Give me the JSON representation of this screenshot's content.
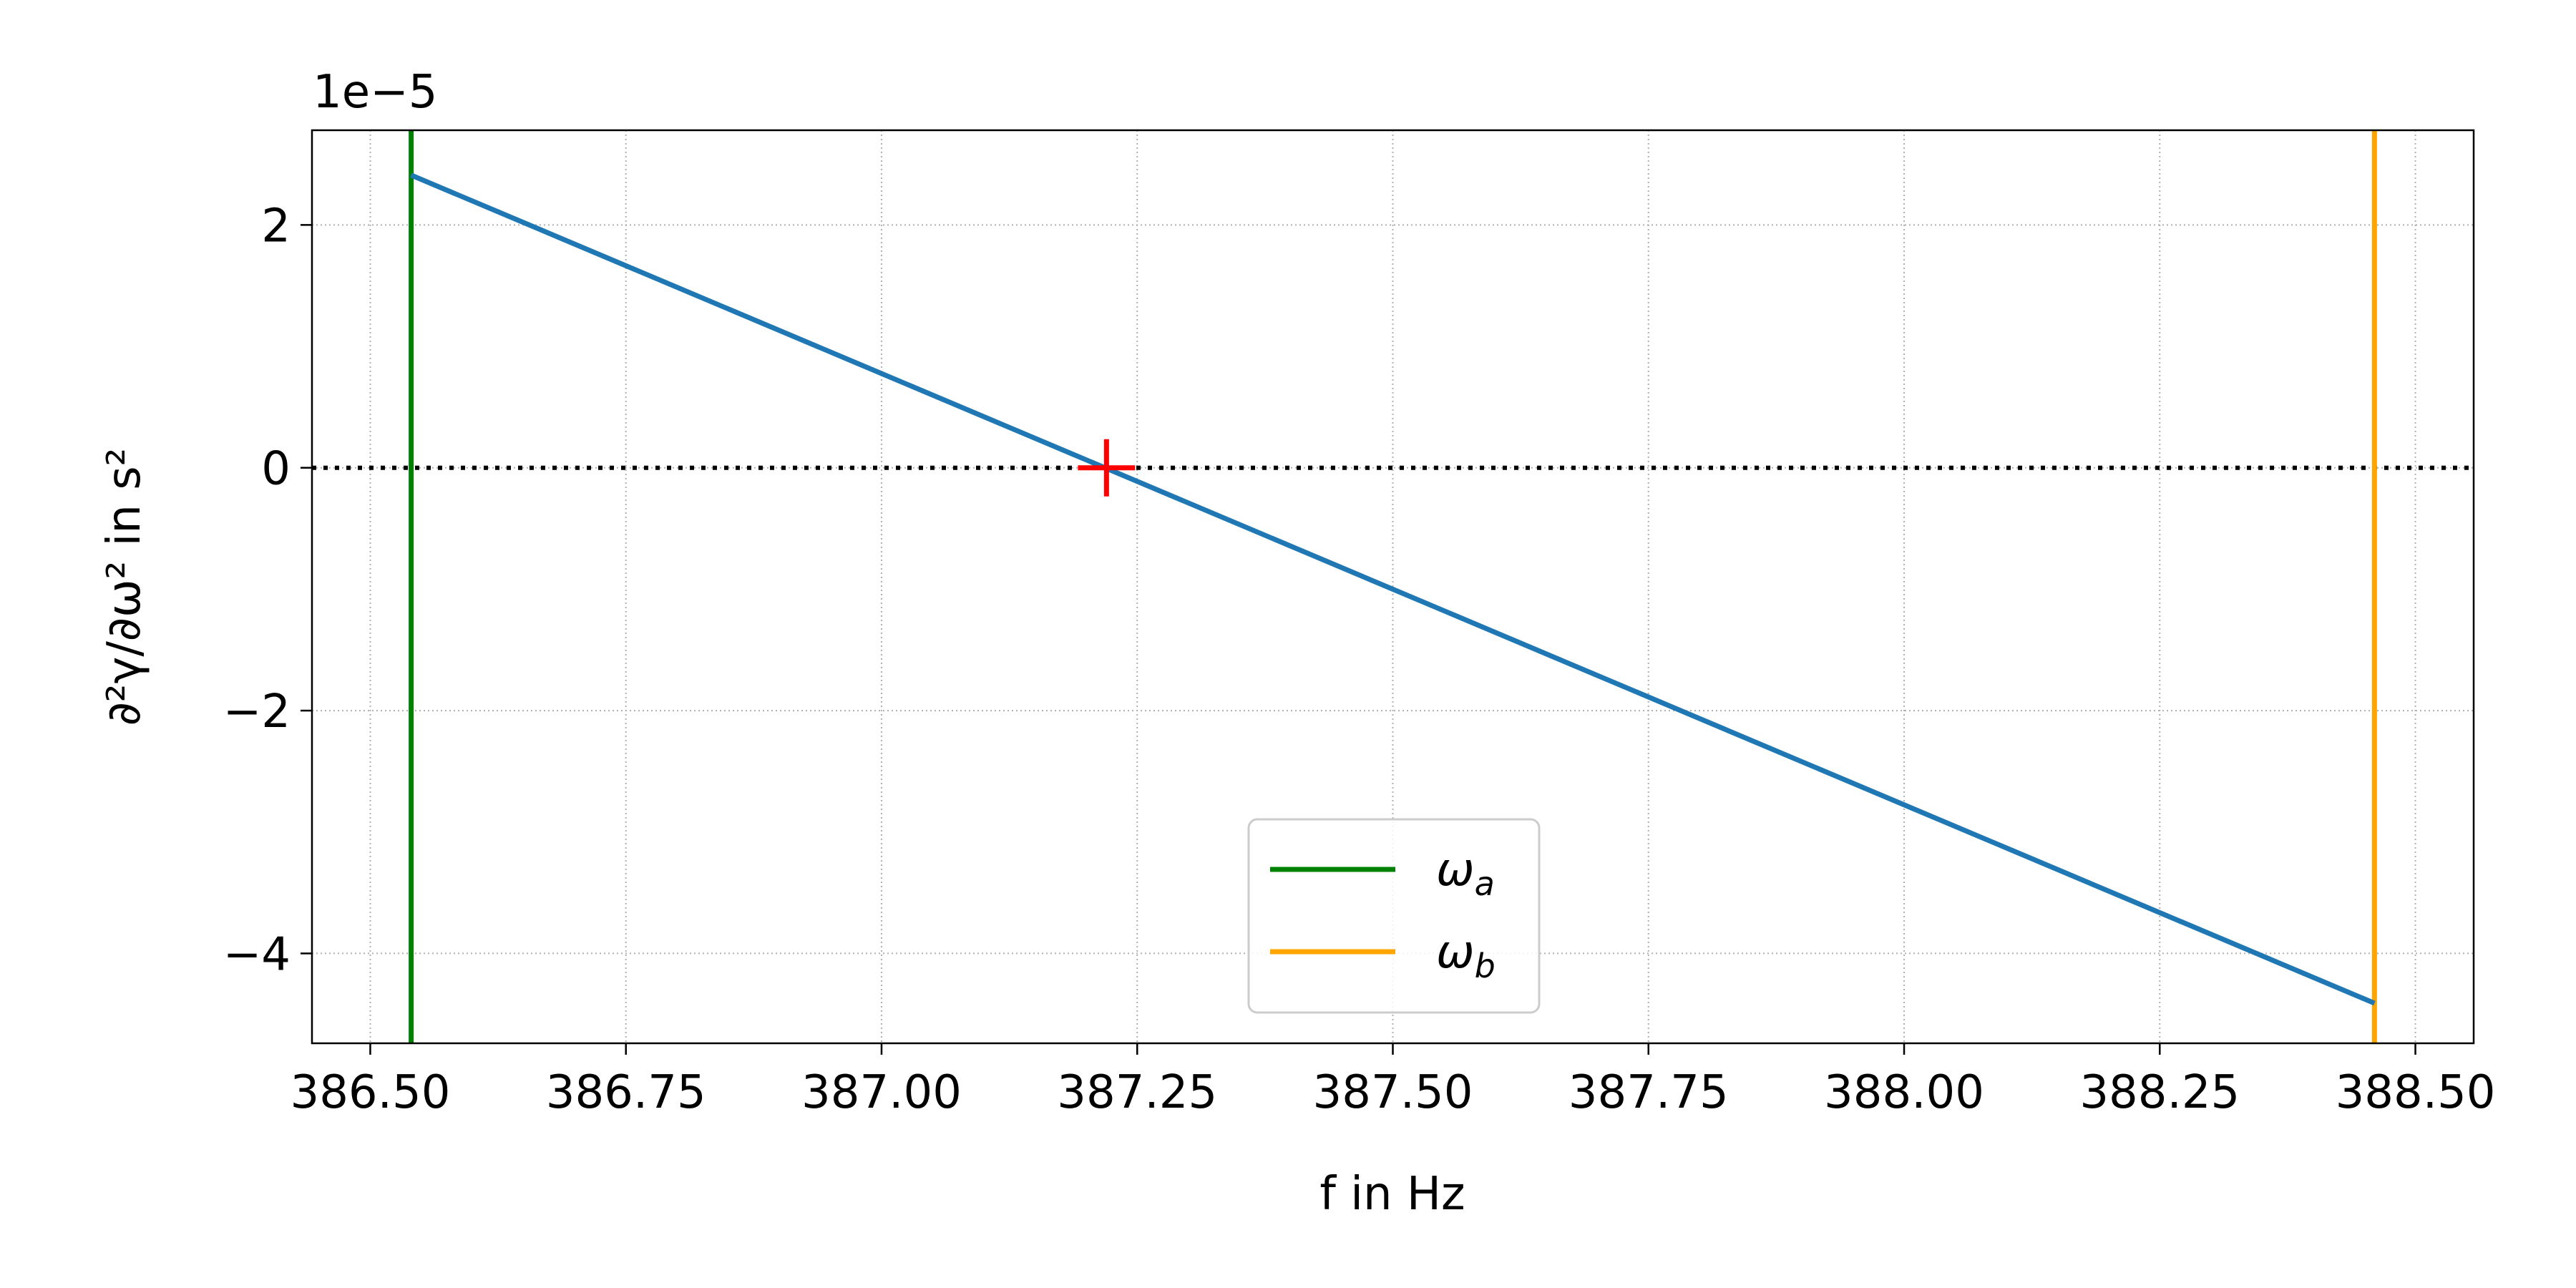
{
  "chart_data": {
    "type": "line",
    "title": "",
    "xlabel": "f in Hz",
    "ylabel": "∂²γ/∂ω² in s²",
    "y_offset_label": "1e−5",
    "xlim": [
      386.443,
      388.557
    ],
    "ylim": [
      -4.74,
      2.78
    ],
    "xticks": [
      386.5,
      386.75,
      387.0,
      387.25,
      387.5,
      387.75,
      388.0,
      388.25,
      388.5
    ],
    "xtick_labels": [
      "386.50",
      "386.75",
      "387.00",
      "387.25",
      "387.50",
      "387.75",
      "388.00",
      "388.25",
      "388.50"
    ],
    "yticks": [
      2,
      0,
      -2,
      -4
    ],
    "ytick_labels": [
      "2",
      "0",
      "−2",
      "−4"
    ],
    "grid": true,
    "series": [
      {
        "x": [
          386.54,
          388.46
        ],
        "y": [
          2.41,
          -4.41
        ],
        "color": "#1f77b4"
      }
    ],
    "vlines": [
      {
        "name": "ωa",
        "x": 386.54,
        "color": "#008000"
      },
      {
        "name": "ωb",
        "x": 388.46,
        "color": "#ffa500"
      }
    ],
    "hline": {
      "y": 0,
      "style": "dotted",
      "color": "#000000"
    },
    "marker": {
      "x": 387.22,
      "y": 0,
      "symbol": "plus",
      "color": "#ff0000"
    },
    "legend": {
      "placement": "lower-center",
      "entries": [
        {
          "symbol": "ω",
          "sub": "a",
          "color": "#008000"
        },
        {
          "symbol": "ω",
          "sub": "b",
          "color": "#ffa500"
        }
      ]
    }
  }
}
